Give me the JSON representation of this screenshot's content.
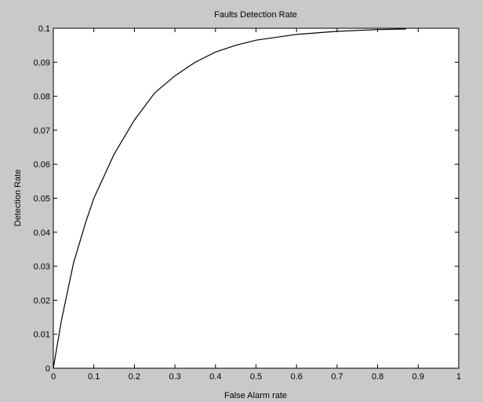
{
  "chart_data": {
    "type": "line",
    "title": "Faults Detection Rate",
    "xlabel": "False Alarm rate",
    "ylabel": "Detection Rate",
    "xlim": [
      0,
      1
    ],
    "ylim": [
      0,
      0.1
    ],
    "xticks": [
      0,
      0.1,
      0.2,
      0.3,
      0.4,
      0.5,
      0.6,
      0.7,
      0.8,
      0.9,
      1
    ],
    "xtick_labels": [
      "0",
      "0.1",
      "0.2",
      "0.3",
      "0.4",
      "0.5",
      "0.6",
      "0.7",
      "0.8",
      "0.9",
      "1"
    ],
    "yticks": [
      0,
      0.01,
      0.02,
      0.03,
      0.04,
      0.05,
      0.06,
      0.07,
      0.08,
      0.09,
      0.1
    ],
    "ytick_labels": [
      "0",
      "0.01",
      "0.02",
      "0.03",
      "0.04",
      "0.05",
      "0.06",
      "0.07",
      "0.08",
      "0.09",
      "0.1"
    ],
    "grid": false,
    "series": [
      {
        "color": "#000000",
        "x": [
          0,
          0.02,
          0.05,
          0.08,
          0.1,
          0.15,
          0.2,
          0.25,
          0.3,
          0.35,
          0.4,
          0.45,
          0.5,
          0.6,
          0.7,
          0.8,
          0.87
        ],
        "y": [
          0,
          0.014,
          0.031,
          0.043,
          0.05,
          0.063,
          0.073,
          0.081,
          0.086,
          0.09,
          0.093,
          0.095,
          0.0965,
          0.0982,
          0.0991,
          0.0996,
          0.0998
        ]
      }
    ]
  }
}
